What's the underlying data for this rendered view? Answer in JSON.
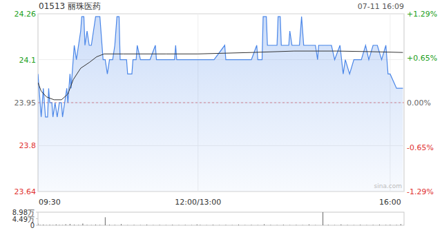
{
  "chart_data": [
    {
      "type": "line",
      "title": "01513 丽珠医药",
      "subtitle": "07-11 16:09",
      "annotations": [
        "sina.com"
      ],
      "grid": true,
      "prev_close": 23.95,
      "xlim": [
        0,
        343
      ],
      "xticks": [
        {
          "value": 0,
          "label": "09:30"
        },
        {
          "value": 150,
          "label": "12:00/13:00"
        },
        {
          "value": 330,
          "label": "16:00"
        }
      ],
      "ylim": [
        23.64,
        24.26
      ],
      "yticks": [
        24.26,
        24.1,
        23.95,
        23.8,
        23.64
      ],
      "y2lim": [
        -1.29,
        1.29
      ],
      "y2ticks": [
        {
          "value": 1.29,
          "label": "+1.29%"
        },
        {
          "value": 0.65,
          "label": "+0.65%"
        },
        {
          "value": 0,
          "label": "0.00%"
        },
        {
          "value": -0.65,
          "label": "-0.65%"
        },
        {
          "value": -1.29,
          "label": "-1.29%"
        }
      ],
      "series": [
        {
          "color": "#4a86e8",
          "x": [
            0,
            1,
            2,
            3,
            4,
            5,
            6,
            7,
            9,
            10,
            11,
            13,
            14,
            16,
            18,
            20,
            22,
            23,
            25,
            27,
            28,
            30,
            31,
            33,
            34,
            36,
            38,
            40,
            41,
            43,
            44,
            46,
            48,
            50,
            52,
            54,
            58,
            60,
            61,
            63,
            65,
            67,
            70,
            72,
            74,
            76,
            77,
            80,
            83,
            84,
            88,
            89,
            92,
            93,
            96,
            100,
            105,
            110,
            111,
            120,
            128,
            129,
            130,
            140,
            150,
            155,
            165,
            175,
            176,
            190,
            200,
            205,
            206,
            210,
            211,
            214,
            215,
            220,
            224,
            225,
            227,
            228,
            235,
            236,
            238,
            245,
            247,
            249,
            255,
            260,
            262,
            263,
            270,
            275,
            278,
            283,
            286,
            288,
            292,
            296,
            300,
            303,
            307,
            310,
            314,
            318,
            322,
            326,
            328,
            330,
            336,
            342
          ],
          "values": [
            24.05,
            24.0,
            23.95,
            23.9,
            23.95,
            24.0,
            23.95,
            23.9,
            23.9,
            24.0,
            23.95,
            23.95,
            23.9,
            23.95,
            23.9,
            23.95,
            23.95,
            23.9,
            23.95,
            24.0,
            23.95,
            24.05,
            24.0,
            24.1,
            24.15,
            24.1,
            24.15,
            24.2,
            24.25,
            24.25,
            24.15,
            24.2,
            24.15,
            24.15,
            24.2,
            24.25,
            24.25,
            24.15,
            24.1,
            24.1,
            24.05,
            24.1,
            24.1,
            24.15,
            24.25,
            24.25,
            24.1,
            24.1,
            24.1,
            24.05,
            24.05,
            24.1,
            24.1,
            24.15,
            24.1,
            24.1,
            24.1,
            24.15,
            24.1,
            24.1,
            24.1,
            24.15,
            24.1,
            24.1,
            24.1,
            24.1,
            24.1,
            24.15,
            24.1,
            24.1,
            24.1,
            24.15,
            24.1,
            24.1,
            24.25,
            24.25,
            24.15,
            24.15,
            24.15,
            24.25,
            24.25,
            24.15,
            24.15,
            24.2,
            24.15,
            24.15,
            24.25,
            24.15,
            24.15,
            24.15,
            24.1,
            24.15,
            24.15,
            24.15,
            24.1,
            24.15,
            24.05,
            24.1,
            24.05,
            24.1,
            24.1,
            24.1,
            24.15,
            24.1,
            24.15,
            24.15,
            24.1,
            24.15,
            24.05,
            24.05,
            24.0,
            24.0
          ]
        },
        {
          "color": "#333333",
          "x": [
            0,
            3,
            8,
            15,
            22,
            28,
            33,
            40,
            48,
            55,
            62,
            80,
            120,
            150,
            200,
            240,
            280,
            310,
            342
          ],
          "values": [
            24.02,
            23.99,
            23.97,
            23.96,
            23.96,
            23.98,
            24.03,
            24.07,
            24.09,
            24.11,
            24.12,
            24.12,
            24.12,
            24.12,
            24.125,
            24.13,
            24.13,
            24.128,
            24.125
          ]
        }
      ]
    },
    {
      "type": "bar",
      "color": "#666666",
      "xlim": [
        0,
        343
      ],
      "ylim": [
        0,
        89800
      ],
      "yticks": [
        {
          "value": 89800,
          "label": "8.98万"
        },
        {
          "value": 44900,
          "label": "4.49万"
        },
        0
      ],
      "x": [
        0,
        2,
        5,
        8,
        11,
        14,
        17,
        20,
        23,
        26,
        30,
        34,
        38,
        42,
        46,
        50,
        54,
        58,
        63,
        67,
        72,
        78,
        84,
        90,
        96,
        102,
        108,
        114,
        120,
        126,
        132,
        138,
        144,
        149,
        152,
        158,
        164,
        170,
        176,
        182,
        188,
        194,
        200,
        206,
        212,
        218,
        224,
        230,
        236,
        242,
        248,
        254,
        260,
        267,
        272,
        278,
        284,
        290,
        296,
        302,
        308,
        314,
        320,
        326,
        330,
        336,
        340
      ],
      "values": [
        12000,
        3000,
        5000,
        2000,
        4000,
        2000,
        6000,
        3000,
        2000,
        7000,
        9000,
        4000,
        3000,
        12000,
        3000,
        2000,
        5000,
        3000,
        55000,
        4000,
        3000,
        8000,
        2000,
        3000,
        2000,
        5000,
        2000,
        3000,
        2000,
        4000,
        2000,
        3000,
        2000,
        6000,
        3000,
        2000,
        4000,
        2000,
        3000,
        2000,
        5000,
        2000,
        3000,
        2000,
        7000,
        3000,
        2000,
        4000,
        2000,
        3000,
        2000,
        6000,
        2000,
        89800,
        4000,
        2000,
        6000,
        3000,
        2000,
        4000,
        2000,
        3000,
        5000,
        3000,
        4000,
        3000,
        8000
      ]
    }
  ]
}
